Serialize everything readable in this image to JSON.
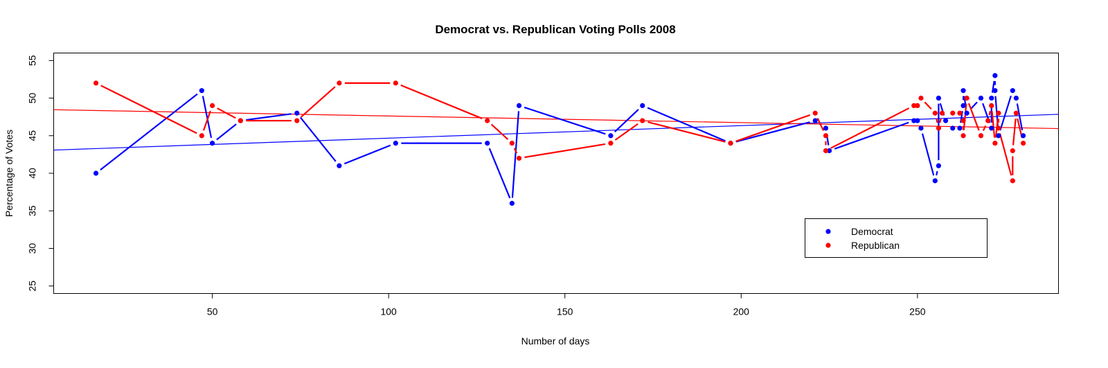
{
  "chart_data": {
    "type": "line",
    "title": "Democrat vs. Republican Voting Polls 2008",
    "xlabel": "Number of days",
    "ylabel": "Percentage of Votes",
    "xlim": [
      5,
      290
    ],
    "ylim": [
      24,
      56
    ],
    "xticks": [
      50,
      100,
      150,
      200,
      250
    ],
    "yticks": [
      25,
      30,
      35,
      40,
      45,
      50,
      55
    ],
    "grid": false,
    "legend": {
      "position": "bottom-right",
      "entries": [
        "Democrat",
        "Republican"
      ]
    },
    "series": [
      {
        "name": "Democrat",
        "color": "#0000ff",
        "x": [
          17,
          47,
          50,
          58,
          74,
          86,
          102,
          128,
          135,
          137,
          163,
          172,
          197,
          221,
          224,
          225,
          249,
          250,
          251,
          255,
          256,
          256,
          258,
          260,
          262,
          263,
          263,
          264,
          268,
          271,
          271,
          272,
          272,
          273,
          277,
          278,
          280
        ],
        "y": [
          40,
          51,
          44,
          47,
          48,
          41,
          44,
          44,
          36,
          49,
          45,
          49,
          44,
          47,
          46,
          43,
          47,
          47,
          46,
          39,
          41,
          50,
          47,
          46,
          46,
          49,
          51,
          48,
          50,
          46,
          50,
          53,
          51,
          45,
          51,
          50,
          45
        ],
        "trend": {
          "intercept": 43.0,
          "slope": 0.0167
        }
      },
      {
        "name": "Republican",
        "color": "#ff0000",
        "x": [
          17,
          47,
          50,
          58,
          74,
          86,
          102,
          128,
          135,
          137,
          163,
          172,
          197,
          221,
          224,
          224,
          249,
          250,
          251,
          255,
          256,
          257,
          260,
          262,
          263,
          263,
          264,
          268,
          270,
          271,
          272,
          273,
          273,
          277,
          277,
          278,
          280
        ],
        "y": [
          52,
          45,
          49,
          47,
          47,
          52,
          52,
          47,
          44,
          42,
          44,
          47,
          44,
          48,
          45,
          43,
          49,
          49,
          50,
          48,
          46,
          48,
          48,
          48,
          47,
          45,
          50,
          45,
          47,
          49,
          44,
          48,
          46,
          39,
          43,
          48,
          44
        ],
        "trend": {
          "intercept": 48.5,
          "slope": -0.0088
        }
      }
    ]
  }
}
